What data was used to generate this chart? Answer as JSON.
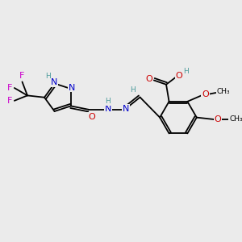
{
  "background_color": "#ebebeb",
  "figure_size": [
    3.0,
    3.0
  ],
  "dpi": 100,
  "N_color": "#0000cc",
  "O_color": "#cc0000",
  "F_color": "#cc00cc",
  "H_color": "#4a9a9a",
  "C_color": "#000000",
  "bond_lw": 1.3,
  "font_size_atom": 8.0,
  "font_size_small": 6.5,
  "xlim": [
    0,
    10
  ],
  "ylim": [
    0,
    10
  ]
}
